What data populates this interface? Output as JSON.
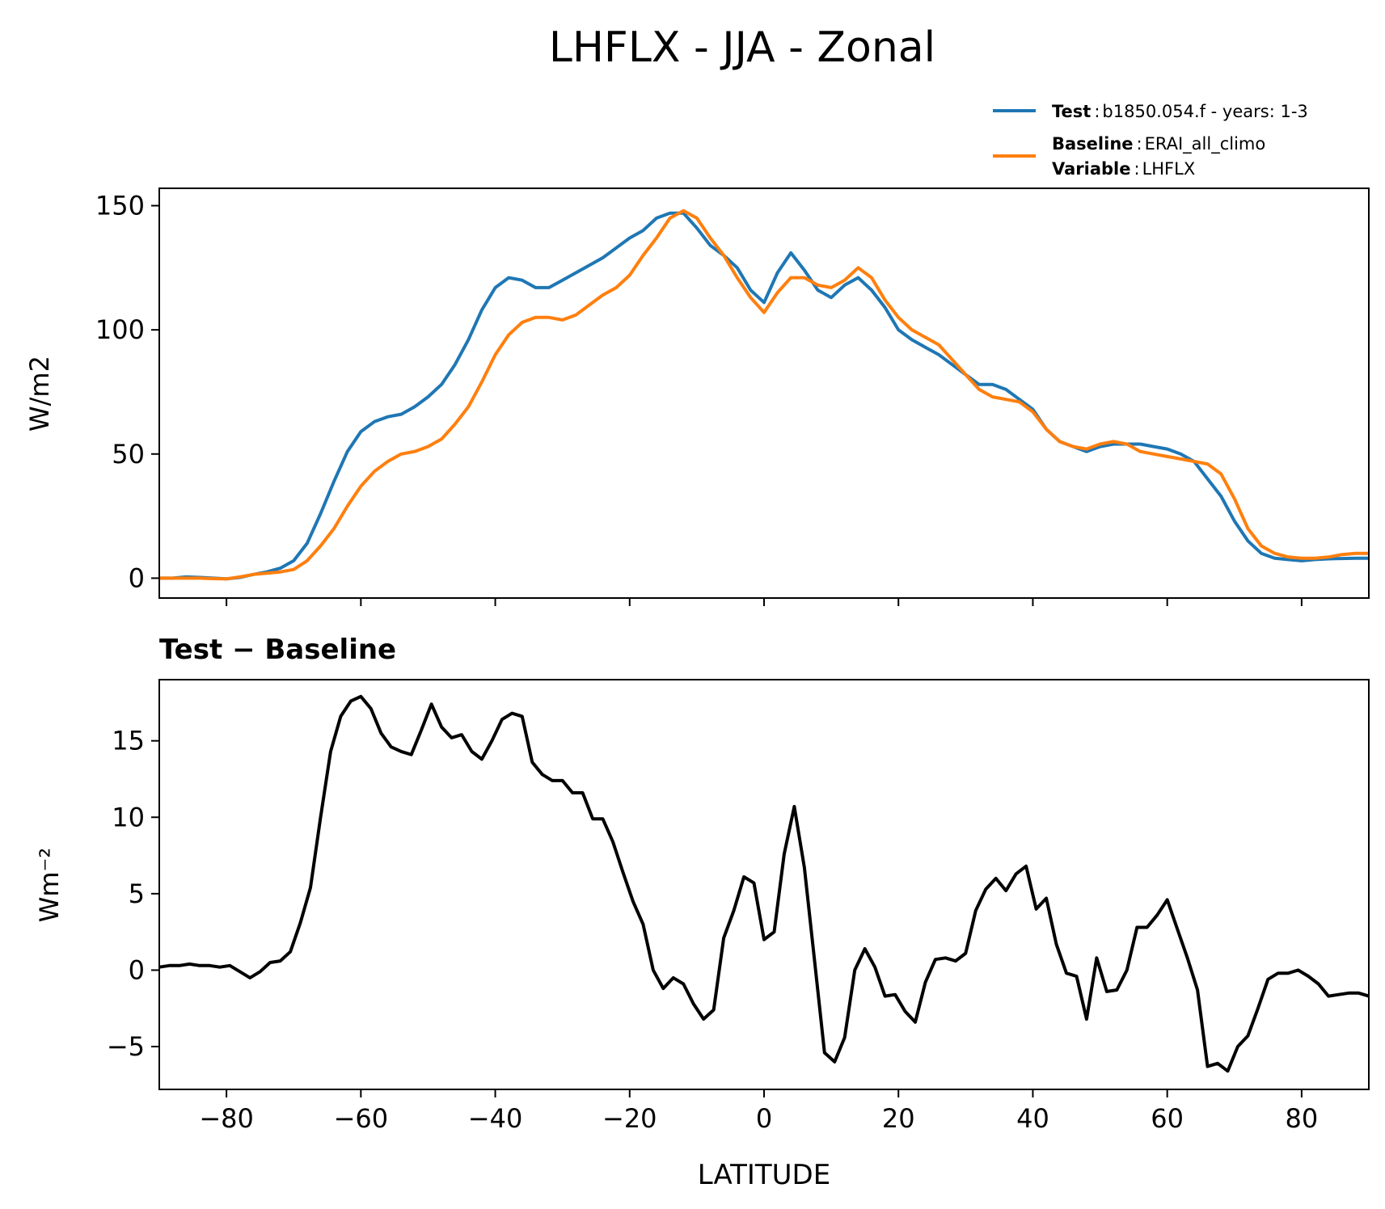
{
  "figure": {
    "title": "LHFLX - JJA - Zonal",
    "legend": {
      "placement": "upper-right",
      "entries": [
        {
          "key": "Test",
          "sep": ":",
          "text": "b1850.054.f - years: 1-3",
          "color": "#1f77b4"
        },
        {
          "key": "Baseline",
          "sep": ":",
          "text": "ERAI_all_climo",
          "color": "#ff7f0e"
        },
        {
          "key": "Variable",
          "sep": ":",
          "text": "LHFLX"
        }
      ]
    },
    "diff_title": "Test − Baseline"
  },
  "chart_data": [
    {
      "type": "line",
      "ylabel": "W/m2",
      "xlabel": "",
      "xlim": [
        -90,
        90
      ],
      "ylim": [
        -8,
        157
      ],
      "yticks": [
        0,
        50,
        100,
        150
      ],
      "ytick_labels": [
        "0",
        "50",
        "100",
        "150"
      ],
      "xticks": [
        -80,
        -60,
        -40,
        -20,
        0,
        20,
        40,
        60,
        80
      ],
      "grid": false,
      "x": [
        -90,
        -88,
        -86,
        -84,
        -82,
        -80,
        -78,
        -76,
        -74,
        -72,
        -70,
        -68,
        -66,
        -64,
        -62,
        -60,
        -58,
        -56,
        -54,
        -52,
        -50,
        -48,
        -46,
        -44,
        -42,
        -40,
        -38,
        -36,
        -34,
        -32,
        -30,
        -28,
        -26,
        -24,
        -22,
        -20,
        -18,
        -16,
        -14,
        -12,
        -10,
        -8,
        -6,
        -4,
        -2,
        0,
        2,
        4,
        6,
        8,
        10,
        12,
        14,
        16,
        18,
        20,
        22,
        24,
        26,
        28,
        30,
        32,
        34,
        36,
        38,
        40,
        42,
        44,
        46,
        48,
        50,
        52,
        54,
        56,
        58,
        60,
        62,
        64,
        66,
        68,
        70,
        72,
        74,
        76,
        78,
        80,
        82,
        84,
        86,
        88,
        90
      ],
      "series": [
        {
          "name": "Test",
          "color": "#1f77b4",
          "values": [
            0,
            0,
            0.5,
            0.3,
            0,
            -0.3,
            0.3,
            1.5,
            2.5,
            4,
            7,
            14,
            26,
            39,
            51,
            59,
            63,
            65,
            66,
            69,
            73,
            78,
            86,
            96,
            108,
            117,
            121,
            120,
            117,
            117,
            120,
            123,
            126,
            129,
            133,
            137,
            140,
            145,
            147,
            147,
            141,
            134,
            130,
            125,
            116,
            111,
            123,
            131,
            124,
            116,
            113,
            118,
            121,
            116,
            109,
            100,
            96,
            93,
            90,
            86,
            82,
            78,
            78,
            76,
            72,
            68,
            60,
            55,
            53,
            51,
            53,
            54,
            54,
            54,
            53,
            52,
            50,
            47,
            40,
            33,
            23,
            15,
            10,
            8,
            7.5,
            7,
            7.5,
            7.8,
            7.9,
            8,
            8
          ]
        },
        {
          "name": "Baseline",
          "color": "#ff7f0e",
          "values": [
            0,
            0,
            0,
            0,
            -0.2,
            -0.3,
            0.5,
            1.5,
            2,
            2.5,
            3.5,
            7,
            13,
            20,
            29,
            37,
            43,
            47,
            50,
            51,
            53,
            56,
            62,
            69,
            79,
            90,
            98,
            103,
            105,
            105,
            104,
            106,
            110,
            114,
            117,
            122,
            130,
            137,
            145,
            148,
            145,
            137,
            130,
            121,
            113,
            107,
            115,
            121,
            121,
            118,
            117,
            120,
            125,
            121,
            112,
            105,
            100,
            97,
            94,
            88,
            82,
            76,
            73,
            72,
            71,
            67,
            60,
            55,
            53,
            52,
            54,
            55,
            54,
            51,
            50,
            49,
            48,
            47,
            46,
            42,
            32,
            20,
            13,
            10,
            8.5,
            8,
            8,
            8.5,
            9.5,
            10,
            10
          ]
        }
      ]
    },
    {
      "type": "line",
      "title": "Test − Baseline",
      "ylabel": "Wm⁻²",
      "xlabel": "LATITUDE",
      "xlim": [
        -90,
        90
      ],
      "ylim": [
        -7.8,
        19
      ],
      "yticks": [
        -5,
        0,
        5,
        10,
        15
      ],
      "ytick_labels": [
        "−5",
        "0",
        "5",
        "10",
        "15"
      ],
      "xticks": [
        -80,
        -60,
        -40,
        -20,
        0,
        20,
        40,
        60,
        80
      ],
      "xtick_labels": [
        "−80",
        "−60",
        "−40",
        "−20",
        "0",
        "20",
        "40",
        "60",
        "80"
      ],
      "grid": false,
      "series": [
        {
          "name": "",
          "color": "#000000",
          "x": [
            -90,
            -88.5,
            -87,
            -85.5,
            -84,
            -82.5,
            -81,
            -79.5,
            -78,
            -76.5,
            -75,
            -73.5,
            -72,
            -70.5,
            -69,
            -67.5,
            -66,
            -64.5,
            -63,
            -61.5,
            -60,
            -58.5,
            -57,
            -55.5,
            -54,
            -52.5,
            -51,
            -49.5,
            -48,
            -46.5,
            -45,
            -43.5,
            -42,
            -40.5,
            -39,
            -37.5,
            -36,
            -34.5,
            -33,
            -31.5,
            -30,
            -28.5,
            -27,
            -25.5,
            -24,
            -22.5,
            -21,
            -19.5,
            -18,
            -16.5,
            -15,
            -13.5,
            -12,
            -10.5,
            -9,
            -7.5,
            -6,
            -4.5,
            -3,
            -1.5,
            0,
            1.5,
            3,
            4.5,
            6,
            7.5,
            9,
            10.5,
            12,
            13.5,
            15,
            16.5,
            18,
            19.5,
            21,
            22.5,
            24,
            25.5,
            27,
            28.5,
            30,
            31.5,
            33,
            34.5,
            36,
            37.5,
            39,
            40.5,
            42,
            43.5,
            45,
            46.5,
            48,
            49.5,
            51,
            52.5,
            54,
            55.5,
            57,
            58.5,
            60,
            61.5,
            63,
            64.5,
            66,
            67.5,
            69,
            70.5,
            72,
            73.5,
            75,
            76.5,
            78,
            79.5,
            81,
            82.5,
            84,
            85.5,
            87,
            88.5,
            90
          ],
          "values": [
            0.2,
            0.3,
            0.3,
            0.4,
            0.3,
            0.3,
            0.2,
            0.3,
            -0.1,
            -0.5,
            -0.1,
            0.5,
            0.6,
            1.2,
            3.1,
            5.4,
            10,
            14.3,
            16.6,
            17.6,
            17.9,
            17.1,
            15.5,
            14.6,
            14.3,
            14.1,
            15.7,
            17.4,
            15.9,
            15.2,
            15.4,
            14.3,
            13.8,
            15,
            16.4,
            16.8,
            16.6,
            13.6,
            12.8,
            12.4,
            12.4,
            11.6,
            11.6,
            9.9,
            9.9,
            8.4,
            6.4,
            4.5,
            3,
            0,
            -1.2,
            -0.5,
            -0.9,
            -2.2,
            -3.2,
            -2.6,
            2.1,
            3.9,
            6.1,
            5.7,
            2,
            2.5,
            7.6,
            10.7,
            6.7,
            0.7,
            -5.4,
            -6,
            -4.4,
            0,
            1.4,
            0.2,
            -1.7,
            -1.6,
            -2.7,
            -3.4,
            -0.8,
            0.7,
            0.8,
            0.6,
            1.1,
            3.9,
            5.3,
            6,
            5.2,
            6.3,
            6.8,
            4,
            4.7,
            1.7,
            -0.2,
            -0.4,
            -3.2,
            0.8,
            -1.4,
            -1.3,
            0,
            2.8,
            2.8,
            3.6,
            4.6,
            2.7,
            0.8,
            -1.3,
            -6.3,
            -6.1,
            -6.6,
            -5,
            -4.3,
            -2.5,
            -0.6,
            -0.2,
            -0.2,
            0,
            -0.4,
            -0.9,
            -1.7,
            -1.6,
            -1.5,
            -1.5,
            -1.7
          ]
        }
      ]
    }
  ]
}
